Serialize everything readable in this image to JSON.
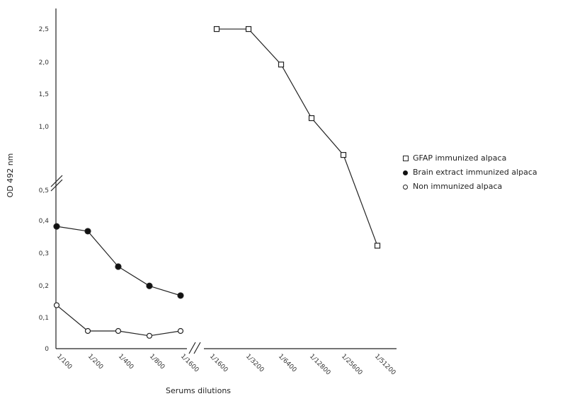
{
  "chart_data": {
    "type": "line",
    "ylabel": "OD 492 nm",
    "xlabel": "Serums dilutions",
    "y_ticks_upper": [
      "2,5",
      "2,0",
      "1,5",
      "1,0"
    ],
    "y_ticks_lower": [
      "0,5",
      "0,4",
      "0,3",
      "0,2",
      "0,1",
      "0"
    ],
    "x_categories_left": [
      "1/100",
      "1/200",
      "1/400",
      "1/800",
      "1/1600"
    ],
    "x_categories_right": [
      "1/1600",
      "1/3200",
      "1/6400",
      "1/12800",
      "1/25600",
      "1/51200"
    ],
    "series": [
      {
        "name": "GFAP immunized alpaca",
        "marker": "open-square",
        "panel": "right",
        "x": [
          "1/1600",
          "1/3200",
          "1/6400",
          "1/12800",
          "1/25600",
          "1/51200"
        ],
        "values": [
          2.5,
          2.5,
          1.95,
          1.12,
          0.55,
          0.32
        ]
      },
      {
        "name": "Brain extract immunized alpaca",
        "marker": "filled-circle",
        "panel": "left",
        "x": [
          "1/100",
          "1/200",
          "1/400",
          "1/800",
          "1/1600"
        ],
        "values": [
          0.38,
          0.365,
          0.255,
          0.195,
          0.165
        ]
      },
      {
        "name": "Non immunized alpaca",
        "marker": "open-circle",
        "panel": "left",
        "x": [
          "1/100",
          "1/200",
          "1/400",
          "1/800",
          "1/1600"
        ],
        "values": [
          0.135,
          0.055,
          0.055,
          0.04,
          0.055
        ]
      }
    ],
    "legend_position": "right"
  }
}
